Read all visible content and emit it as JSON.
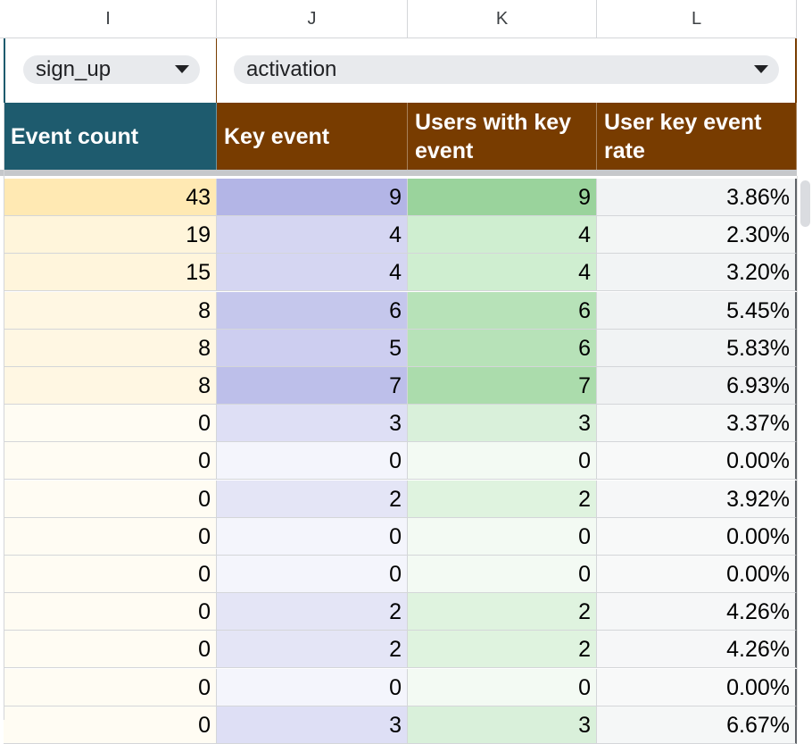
{
  "columns": [
    "I",
    "J",
    "K",
    "L"
  ],
  "dropdowns": [
    {
      "value": "sign_up",
      "icon": "chevron-down-icon"
    },
    {
      "value": "activation",
      "icon": "chevron-down-icon"
    }
  ],
  "headers": [
    {
      "label": "Event count",
      "color": "#1e5b6e"
    },
    {
      "label": "Key event",
      "color": "#783c00"
    },
    {
      "label": "Users with key event",
      "color": "#783c00"
    },
    {
      "label": "User key event rate",
      "color": "#783c00"
    }
  ],
  "rows": [
    [
      "43",
      "9",
      "9",
      "3.86%"
    ],
    [
      "19",
      "4",
      "4",
      "2.30%"
    ],
    [
      "15",
      "4",
      "4",
      "3.20%"
    ],
    [
      "8",
      "6",
      "6",
      "5.45%"
    ],
    [
      "8",
      "5",
      "6",
      "5.83%"
    ],
    [
      "8",
      "7",
      "7",
      "6.93%"
    ],
    [
      "0",
      "3",
      "3",
      "3.37%"
    ],
    [
      "0",
      "0",
      "0",
      "0.00%"
    ],
    [
      "0",
      "2",
      "2",
      "3.92%"
    ],
    [
      "0",
      "0",
      "0",
      "0.00%"
    ],
    [
      "0",
      "0",
      "0",
      "0.00%"
    ],
    [
      "0",
      "2",
      "2",
      "4.26%"
    ],
    [
      "0",
      "2",
      "2",
      "4.26%"
    ],
    [
      "0",
      "0",
      "0",
      "0.00%"
    ],
    [
      "0",
      "3",
      "3",
      "6.67%"
    ]
  ],
  "cell_colors": [
    [
      "#ffe9b3",
      "#b3b5e6",
      "#9ad39c",
      "#f1f3f4"
    ],
    [
      "#fff5db",
      "#d5d6f2",
      "#cfeed0",
      "#f4f6f6"
    ],
    [
      "#fff5dc",
      "#d5d6f2",
      "#cfeed0",
      "#f2f4f5"
    ],
    [
      "#fff7e3",
      "#c5c7ec",
      "#b7e2b8",
      "#f1f3f4"
    ],
    [
      "#fff7e3",
      "#cdcef0",
      "#b7e2b8",
      "#f1f3f4"
    ],
    [
      "#fff7e3",
      "#bdbfea",
      "#abdcac",
      "#f0f2f3"
    ],
    [
      "#fffcf3",
      "#dedff5",
      "#d9f0da",
      "#f5f7f7"
    ],
    [
      "#fffcf3",
      "#f4f5fc",
      "#f3faf3",
      "#f8f9f9"
    ],
    [
      "#fffcf3",
      "#e4e5f6",
      "#dff3df",
      "#f6f7f8"
    ],
    [
      "#fffcf3",
      "#f4f5fc",
      "#f3faf3",
      "#f8f9f9"
    ],
    [
      "#fffcf3",
      "#f4f5fc",
      "#f3faf3",
      "#f8f9f9"
    ],
    [
      "#fffcf3",
      "#e4e5f6",
      "#dff3df",
      "#f6f7f8"
    ],
    [
      "#fffcf3",
      "#e4e5f6",
      "#dff3df",
      "#f6f7f8"
    ],
    [
      "#fffcf3",
      "#f4f5fc",
      "#f3faf3",
      "#f8f9f9"
    ],
    [
      "#fffcf3",
      "#dedff5",
      "#d9f0da",
      "#f5f7f7"
    ]
  ]
}
